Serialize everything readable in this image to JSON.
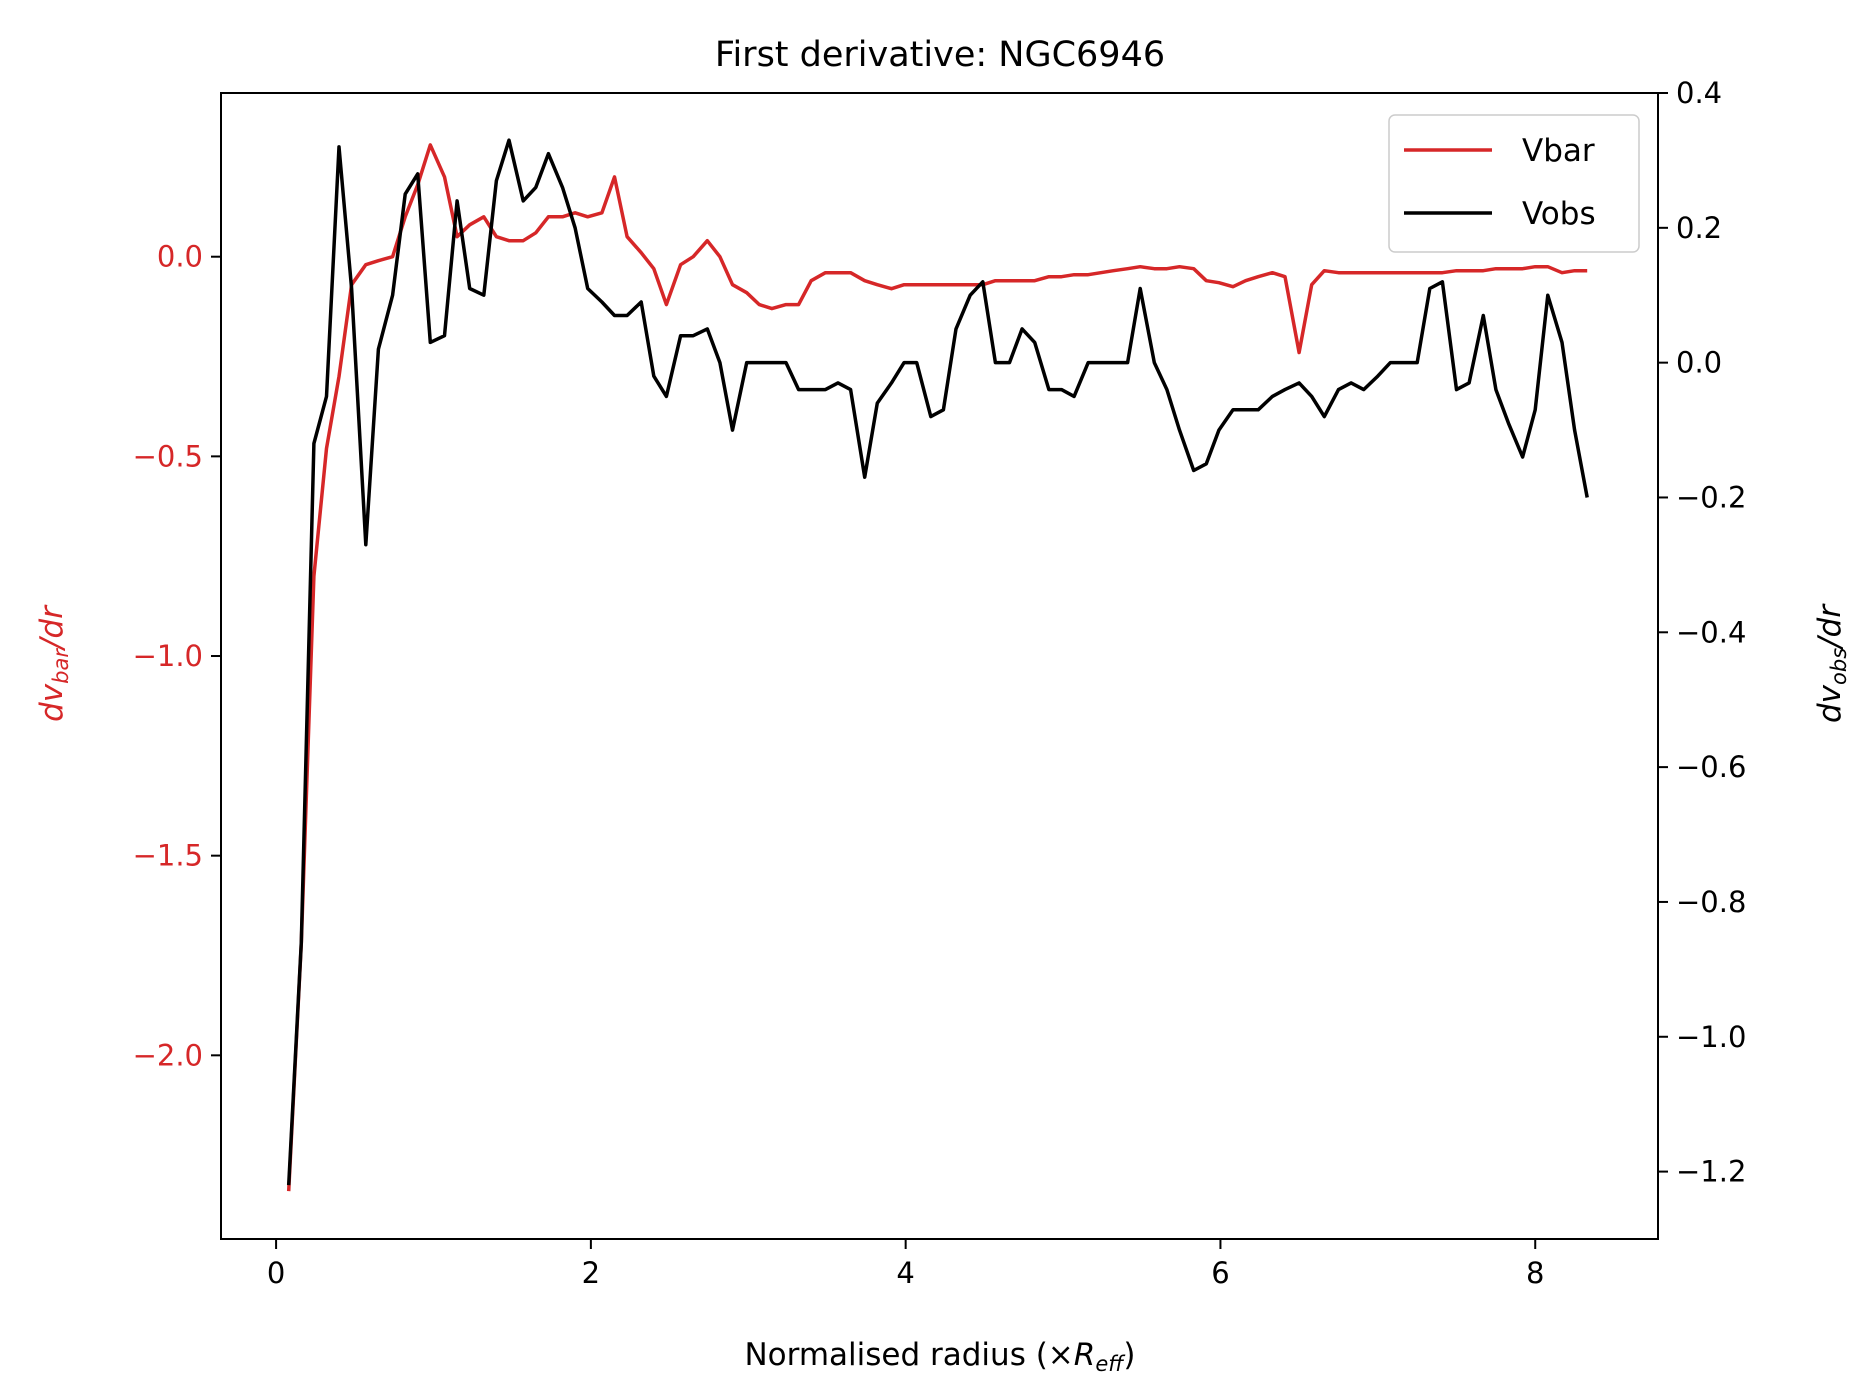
{
  "chart_data": {
    "type": "line",
    "title": "First derivative: NGC6946",
    "xlabel": {
      "prefix": "Normalised radius (×",
      "var": "R",
      "sub": "eff",
      "suffix": ")"
    },
    "ylabel_left": {
      "prefix": "dv",
      "sub": "bar",
      "suffix": "/dr"
    },
    "ylabel_right": {
      "prefix": "dv",
      "sub": "obs",
      "suffix": "/dr"
    },
    "xlim": [
      -0.35,
      8.78
    ],
    "ylim_left": [
      -2.46,
      0.41
    ],
    "ylim_right": [
      -1.3,
      0.4
    ],
    "xticks": [
      0,
      2,
      4,
      6,
      8
    ],
    "xtick_labels": [
      "0",
      "2",
      "4",
      "6",
      "8"
    ],
    "yticks_left": [
      0.0,
      -0.5,
      -1.0,
      -1.5,
      -2.0
    ],
    "ytick_labels_left": [
      "0.0",
      "−0.5",
      "−1.0",
      "−1.5",
      "−2.0"
    ],
    "yticks_right": [
      0.4,
      0.2,
      0.0,
      -0.2,
      -0.4,
      -0.6,
      -0.8,
      -1.0,
      -1.2
    ],
    "ytick_labels_right": [
      "0.4",
      "0.2",
      "0.0",
      "−0.2",
      "−0.4",
      "−0.6",
      "−0.8",
      "−1.0",
      "−1.2"
    ],
    "grid": false,
    "legend_position": "top-right",
    "colors": {
      "vbar": "#d62728",
      "vobs": "#000000",
      "left_axis": "#d62728"
    },
    "series": [
      {
        "name": "Vbar",
        "axis": "left",
        "x": [
          0.08,
          0.16,
          0.24,
          0.32,
          0.4,
          0.48,
          0.57,
          0.65,
          0.74,
          0.82,
          0.9,
          0.98,
          1.07,
          1.15,
          1.23,
          1.32,
          1.4,
          1.48,
          1.57,
          1.65,
          1.73,
          1.82,
          1.9,
          1.98,
          2.07,
          2.15,
          2.23,
          2.32,
          2.4,
          2.48,
          2.57,
          2.65,
          2.74,
          2.82,
          2.9,
          2.99,
          3.07,
          3.15,
          3.24,
          3.32,
          3.4,
          3.49,
          3.57,
          3.65,
          3.74,
          3.82,
          3.91,
          3.99,
          4.07,
          4.16,
          4.24,
          4.32,
          4.41,
          4.49,
          4.57,
          4.66,
          4.74,
          4.82,
          4.91,
          4.99,
          5.07,
          5.16,
          5.24,
          5.32,
          5.41,
          5.49,
          5.58,
          5.66,
          5.74,
          5.83,
          5.91,
          5.99,
          6.08,
          6.16,
          6.24,
          6.33,
          6.41,
          6.5,
          6.58,
          6.66,
          6.75,
          6.83,
          6.91,
          7.0,
          7.08,
          7.16,
          7.25,
          7.33,
          7.41,
          7.5,
          7.58,
          7.67,
          7.75,
          7.83,
          7.92,
          8.0,
          8.08,
          8.17,
          8.25,
          8.33
        ],
        "values": [
          -2.34,
          -1.72,
          -0.8,
          -0.48,
          -0.3,
          -0.07,
          -0.02,
          -0.01,
          0.0,
          0.1,
          0.18,
          0.28,
          0.2,
          0.05,
          0.08,
          0.1,
          0.05,
          0.04,
          0.04,
          0.06,
          0.1,
          0.1,
          0.11,
          0.1,
          0.11,
          0.2,
          0.05,
          0.01,
          -0.03,
          -0.12,
          -0.02,
          0.0,
          0.04,
          0.0,
          -0.07,
          -0.09,
          -0.12,
          -0.13,
          -0.12,
          -0.12,
          -0.06,
          -0.04,
          -0.04,
          -0.04,
          -0.06,
          -0.07,
          -0.08,
          -0.07,
          -0.07,
          -0.07,
          -0.07,
          -0.07,
          -0.07,
          -0.07,
          -0.06,
          -0.06,
          -0.06,
          -0.06,
          -0.05,
          -0.05,
          -0.045,
          -0.045,
          -0.04,
          -0.035,
          -0.03,
          -0.025,
          -0.03,
          -0.03,
          -0.025,
          -0.03,
          -0.06,
          -0.065,
          -0.075,
          -0.06,
          -0.05,
          -0.04,
          -0.05,
          -0.24,
          -0.07,
          -0.035,
          -0.04,
          -0.04,
          -0.04,
          -0.04,
          -0.04,
          -0.04,
          -0.04,
          -0.04,
          -0.04,
          -0.035,
          -0.035,
          -0.035,
          -0.03,
          -0.03,
          -0.03,
          -0.025,
          -0.025,
          -0.04,
          -0.035,
          -0.035
        ]
      },
      {
        "name": "Vobs",
        "axis": "right",
        "x": [
          0.08,
          0.16,
          0.24,
          0.32,
          0.4,
          0.48,
          0.57,
          0.65,
          0.74,
          0.82,
          0.9,
          0.98,
          1.07,
          1.15,
          1.23,
          1.32,
          1.4,
          1.48,
          1.57,
          1.65,
          1.73,
          1.82,
          1.9,
          1.98,
          2.07,
          2.15,
          2.23,
          2.32,
          2.4,
          2.48,
          2.57,
          2.65,
          2.74,
          2.82,
          2.9,
          2.99,
          3.07,
          3.15,
          3.24,
          3.32,
          3.4,
          3.49,
          3.57,
          3.65,
          3.74,
          3.82,
          3.91,
          3.99,
          4.07,
          4.16,
          4.24,
          4.32,
          4.41,
          4.49,
          4.57,
          4.66,
          4.74,
          4.82,
          4.91,
          4.99,
          5.07,
          5.16,
          5.24,
          5.32,
          5.41,
          5.49,
          5.58,
          5.66,
          5.74,
          5.83,
          5.91,
          5.99,
          6.08,
          6.16,
          6.24,
          6.33,
          6.41,
          6.5,
          6.58,
          6.66,
          6.75,
          6.83,
          6.91,
          7.0,
          7.08,
          7.16,
          7.25,
          7.33,
          7.41,
          7.5,
          7.58,
          7.67,
          7.75,
          7.83,
          7.92,
          8.0,
          8.08,
          8.17,
          8.25,
          8.33
        ],
        "values": [
          -1.22,
          -0.86,
          -0.12,
          -0.05,
          0.32,
          0.11,
          -0.27,
          0.02,
          0.1,
          0.25,
          0.28,
          0.03,
          0.04,
          0.24,
          0.11,
          0.1,
          0.27,
          0.33,
          0.24,
          0.26,
          0.31,
          0.26,
          0.2,
          0.11,
          0.09,
          0.07,
          0.07,
          0.09,
          -0.02,
          -0.05,
          0.04,
          0.04,
          0.05,
          0.0,
          -0.1,
          0.0,
          0.0,
          0.0,
          0.0,
          -0.04,
          -0.04,
          -0.04,
          -0.03,
          -0.04,
          -0.17,
          -0.06,
          -0.03,
          0.0,
          0.0,
          -0.08,
          -0.07,
          0.05,
          0.1,
          0.12,
          0.0,
          0.0,
          0.05,
          0.03,
          -0.04,
          -0.04,
          -0.05,
          0.0,
          0.0,
          0.0,
          0.0,
          0.11,
          0.0,
          -0.04,
          -0.1,
          -0.16,
          -0.15,
          -0.1,
          -0.07,
          -0.07,
          -0.07,
          -0.05,
          -0.04,
          -0.03,
          -0.05,
          -0.08,
          -0.04,
          -0.03,
          -0.04,
          -0.02,
          0.0,
          0.0,
          0.0,
          0.11,
          0.12,
          -0.04,
          -0.03,
          0.07,
          -0.04,
          -0.09,
          -0.14,
          -0.07,
          0.1,
          0.03,
          -0.1,
          -0.2
        ]
      }
    ]
  }
}
